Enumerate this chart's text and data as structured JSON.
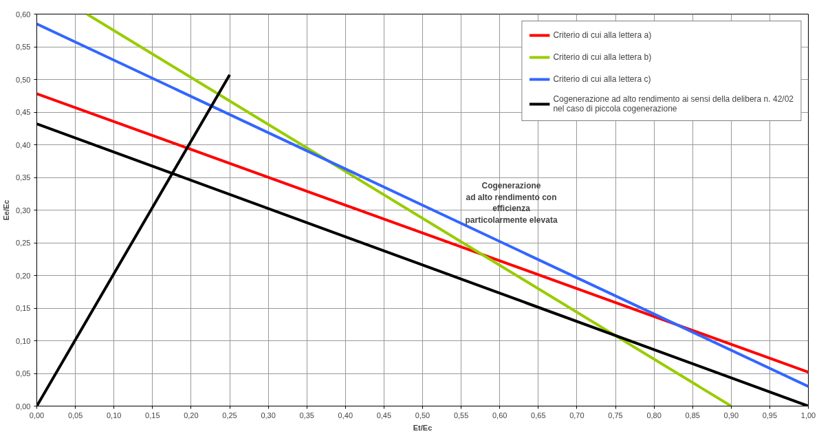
{
  "chart_data": {
    "type": "line",
    "xlabel": "Et/Ec",
    "ylabel": "Ee/Ec",
    "xlim": [
      0,
      1
    ],
    "ylim": [
      0,
      0.6
    ],
    "xticks": [
      {
        "value": 0,
        "label": "0,00"
      },
      {
        "value": 0.05,
        "label": "0,05"
      },
      {
        "value": 0.1,
        "label": "0,10"
      },
      {
        "value": 0.15,
        "label": "0,15"
      },
      {
        "value": 0.2,
        "label": "0,20"
      },
      {
        "value": 0.25,
        "label": "0,25"
      },
      {
        "value": 0.3,
        "label": "0,30"
      },
      {
        "value": 0.35,
        "label": "0,35"
      },
      {
        "value": 0.4,
        "label": "0,40"
      },
      {
        "value": 0.45,
        "label": "0,45"
      },
      {
        "value": 0.5,
        "label": "0,50"
      },
      {
        "value": 0.55,
        "label": "0,55"
      },
      {
        "value": 0.6,
        "label": "0,60"
      },
      {
        "value": 0.65,
        "label": "0,65"
      },
      {
        "value": 0.7,
        "label": "0,70"
      },
      {
        "value": 0.75,
        "label": "0,75"
      },
      {
        "value": 0.8,
        "label": "0,80"
      },
      {
        "value": 0.85,
        "label": "0,85"
      },
      {
        "value": 0.9,
        "label": "0,90"
      },
      {
        "value": 0.95,
        "label": "0,95"
      },
      {
        "value": 1,
        "label": "1,00"
      }
    ],
    "yticks": [
      {
        "value": 0,
        "label": "0,00"
      },
      {
        "value": 0.05,
        "label": "0,05"
      },
      {
        "value": 0.1,
        "label": "0,10"
      },
      {
        "value": 0.15,
        "label": "0,15"
      },
      {
        "value": 0.2,
        "label": "0,20"
      },
      {
        "value": 0.25,
        "label": "0,25"
      },
      {
        "value": 0.3,
        "label": "0,30"
      },
      {
        "value": 0.35,
        "label": "0,35"
      },
      {
        "value": 0.4,
        "label": "0,40"
      },
      {
        "value": 0.45,
        "label": "0,45"
      },
      {
        "value": 0.5,
        "label": "0,50"
      },
      {
        "value": 0.55,
        "label": "0,55"
      },
      {
        "value": 0.6,
        "label": "0,60"
      }
    ],
    "grid": true,
    "legend": "top right",
    "marker": "none",
    "line_style": "solid",
    "series": [
      {
        "name": "Criterio di cui alla lettera a)",
        "color": "#ff0000",
        "x": [
          0,
          1
        ],
        "values": [
          0.478,
          0.052
        ]
      },
      {
        "name": "Criterio di cui alla lettera b)",
        "color": "#99cc00",
        "x": [
          0.065,
          0.9
        ],
        "values": [
          0.6,
          0
        ]
      },
      {
        "name": "Criterio di cui alla lettera c)",
        "color": "#3366ff",
        "x": [
          0,
          1
        ],
        "values": [
          0.585,
          0.03
        ]
      },
      {
        "name": "Cogenerazione ad alto rendimento ai sensi della delibera n. 42/02\nnel caso di piccola cogenerazione",
        "color": "#000000",
        "x": [
          0,
          1
        ],
        "values": [
          0.432,
          0
        ]
      },
      {
        "color": "#000000",
        "x": [
          0,
          0.25
        ],
        "values": [
          0,
          0.507
        ]
      }
    ],
    "annotations": [
      "Cogenerazione\nad alto rendimento con\nefficienza\nparticolarmente elevata"
    ]
  }
}
